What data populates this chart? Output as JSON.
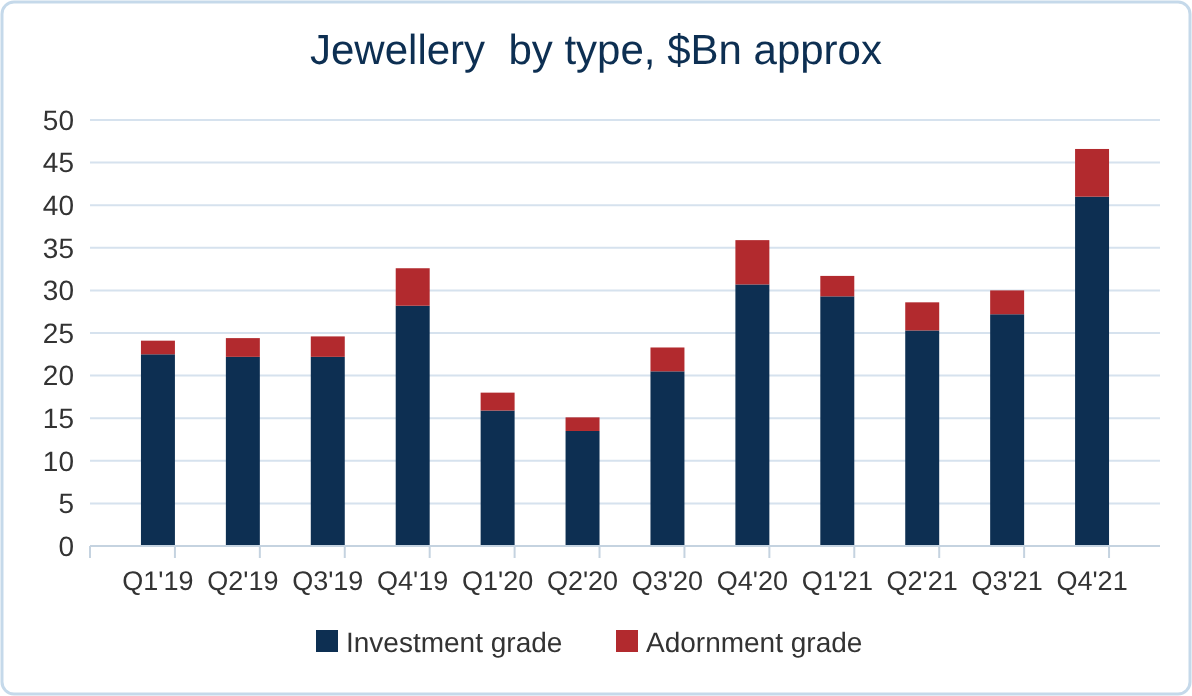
{
  "chart_data": {
    "type": "bar",
    "title": "Jewellery  by type, $Bn approx",
    "stacked": true,
    "categories": [
      "Q1'19",
      "Q2'19",
      "Q3'19",
      "Q4'19",
      "Q1'20",
      "Q2'20",
      "Q3'20",
      "Q4'20",
      "Q1'21",
      "Q2'21",
      "Q3'21",
      "Q4'21"
    ],
    "series": [
      {
        "name": "Investment grade",
        "color": "#0d2f52",
        "values": [
          22.5,
          22.2,
          22.2,
          28.2,
          15.9,
          13.5,
          20.5,
          30.7,
          29.3,
          25.3,
          27.2,
          41.0
        ]
      },
      {
        "name": "Adornment grade",
        "color": "#b22a2e",
        "values": [
          1.6,
          2.2,
          2.4,
          4.4,
          2.1,
          1.6,
          2.8,
          5.2,
          2.4,
          3.3,
          2.8,
          5.6
        ]
      }
    ],
    "ylim": [
      0,
      50
    ],
    "yticks": [
      0,
      5,
      10,
      15,
      20,
      25,
      30,
      35,
      40,
      45,
      50
    ],
    "grid": "y",
    "legend": "bottom"
  }
}
